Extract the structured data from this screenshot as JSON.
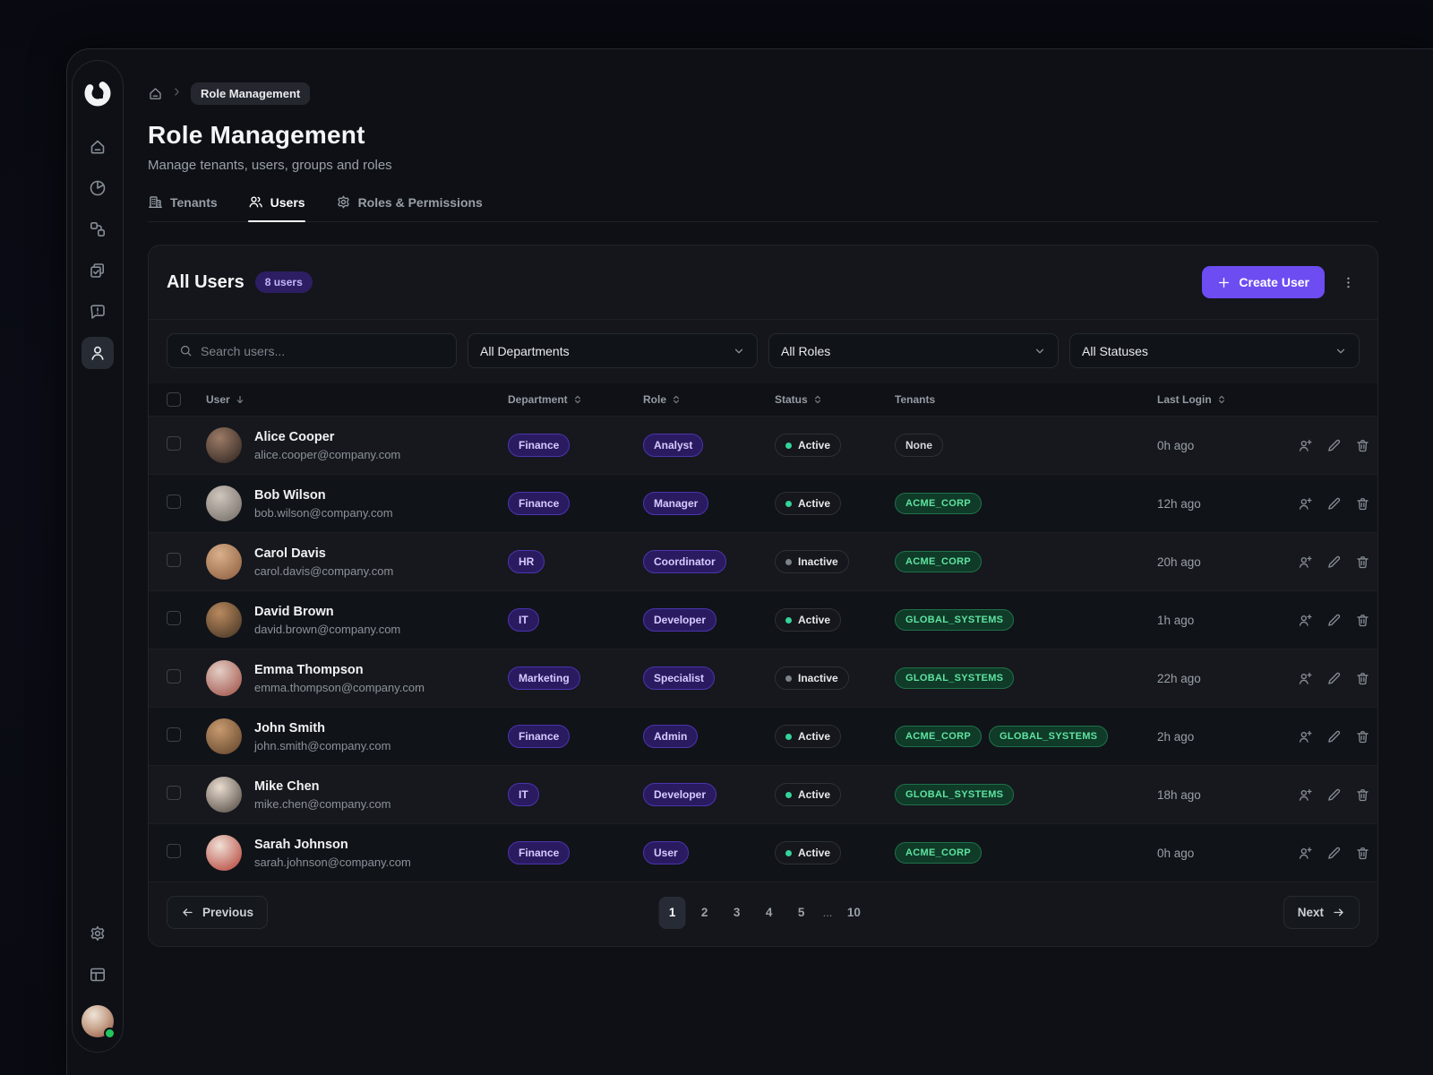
{
  "colors": {
    "accent": "#6d4cf2",
    "active_dot": "#34d399",
    "inactive_dot": "#7c828a",
    "tenant_text": "#5fe3a1",
    "badge_text": "#d7caff",
    "online_dot": "#22c55e"
  },
  "sidebar": {
    "icons": [
      "logo",
      "home-icon",
      "pie-chart-icon",
      "workflow-icon",
      "copy-check-icon",
      "message-alert-icon",
      "users-icon",
      "settings-icon",
      "panel-icon"
    ],
    "active_item": "users",
    "profile_status": "online"
  },
  "breadcrumb": {
    "current": "Role Management"
  },
  "page": {
    "title": "Role Management",
    "subtitle": "Manage tenants, users, groups and roles"
  },
  "tabs": {
    "items": [
      {
        "label": "Tenants",
        "icon": "building-icon",
        "active": false
      },
      {
        "label": "Users",
        "icon": "users-icon",
        "active": true
      },
      {
        "label": "Roles & Permissions",
        "icon": "gear-icon",
        "active": false
      }
    ]
  },
  "card": {
    "title": "All Users",
    "count_badge": "8 users",
    "create_button": "Create User"
  },
  "filters": {
    "search_placeholder": "Search users...",
    "departments": "All Departments",
    "roles": "All Roles",
    "statuses": "All Statuses"
  },
  "table": {
    "columns": [
      {
        "label": "User",
        "sort": "desc"
      },
      {
        "label": "Department",
        "sort": "both"
      },
      {
        "label": "Role",
        "sort": "both"
      },
      {
        "label": "Status",
        "sort": "both"
      },
      {
        "label": "Tenants",
        "sort": "none"
      },
      {
        "label": "Last Login",
        "sort": "both"
      }
    ],
    "none_label": "None",
    "rows": [
      {
        "name": "Alice Cooper",
        "email": "alice.cooper@company.com",
        "department": "Finance",
        "role": "Analyst",
        "status": "Active",
        "tenants": [],
        "last_login": "0h ago",
        "avatar": {
          "from": "#9c7b66",
          "to": "#2b211d"
        }
      },
      {
        "name": "Bob Wilson",
        "email": "bob.wilson@company.com",
        "department": "Finance",
        "role": "Manager",
        "status": "Active",
        "tenants": [
          "ACME_CORP"
        ],
        "last_login": "12h ago",
        "avatar": {
          "from": "#cfc6bd",
          "to": "#6e6862"
        }
      },
      {
        "name": "Carol Davis",
        "email": "carol.davis@company.com",
        "department": "HR",
        "role": "Coordinator",
        "status": "Inactive",
        "tenants": [
          "ACME_CORP"
        ],
        "last_login": "20h ago",
        "avatar": {
          "from": "#d9b08c",
          "to": "#8a5a3a"
        }
      },
      {
        "name": "David Brown",
        "email": "david.brown@company.com",
        "department": "IT",
        "role": "Developer",
        "status": "Active",
        "tenants": [
          "GLOBAL_SYSTEMS"
        ],
        "last_login": "1h ago",
        "avatar": {
          "from": "#b98a5f",
          "to": "#403020"
        }
      },
      {
        "name": "Emma Thompson",
        "email": "emma.thompson@company.com",
        "department": "Marketing",
        "role": "Specialist",
        "status": "Inactive",
        "tenants": [
          "GLOBAL_SYSTEMS"
        ],
        "last_login": "22h ago",
        "avatar": {
          "from": "#e3cec4",
          "to": "#9c4a42"
        }
      },
      {
        "name": "John Smith",
        "email": "john.smith@company.com",
        "department": "Finance",
        "role": "Admin",
        "status": "Active",
        "tenants": [
          "ACME_CORP",
          "GLOBAL_SYSTEMS"
        ],
        "last_login": "2h ago",
        "avatar": {
          "from": "#c89a6f",
          "to": "#5d4128"
        }
      },
      {
        "name": "Mike Chen",
        "email": "mike.chen@company.com",
        "department": "IT",
        "role": "Developer",
        "status": "Active",
        "tenants": [
          "GLOBAL_SYSTEMS"
        ],
        "last_login": "18h ago",
        "avatar": {
          "from": "#e9dccf",
          "to": "#4a423c"
        }
      },
      {
        "name": "Sarah Johnson",
        "email": "sarah.johnson@company.com",
        "department": "Finance",
        "role": "User",
        "status": "Active",
        "tenants": [
          "ACME_CORP"
        ],
        "last_login": "0h ago",
        "avatar": {
          "from": "#efe0d6",
          "to": "#b23b31"
        }
      }
    ]
  },
  "pagination": {
    "previous": "Previous",
    "next": "Next",
    "pages": [
      "1",
      "2",
      "3",
      "4",
      "5",
      "...",
      "10"
    ],
    "active_page": "1"
  }
}
